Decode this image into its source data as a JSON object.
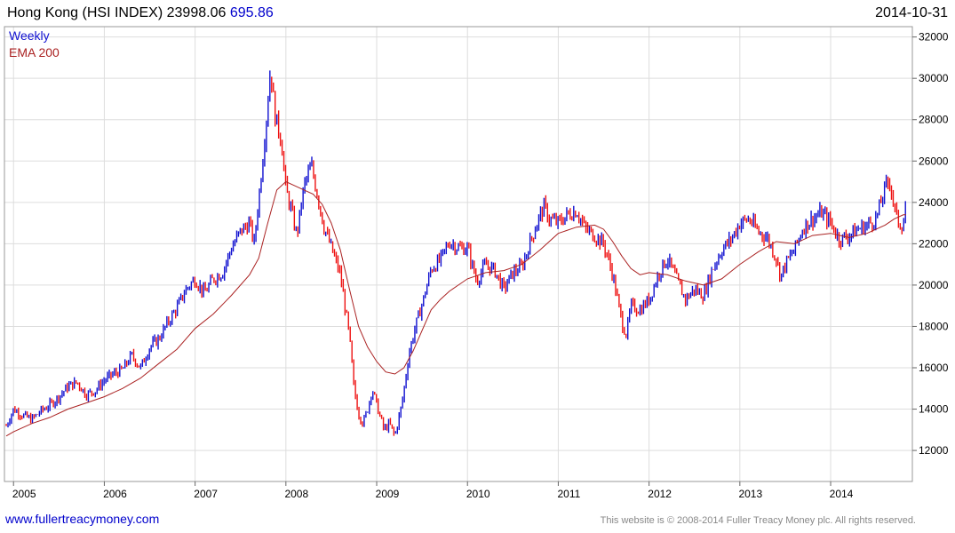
{
  "header": {
    "title": "Hong Kong (HSI INDEX) 23998.06",
    "change": "695.86",
    "date": "2014-10-31"
  },
  "footer": {
    "url": "www.fullertreacymoney.com",
    "copyright": "This website is © 2008-2014 Fuller Treacy Money plc. All rights reserved."
  },
  "colors": {
    "up": "#1010d0",
    "down": "#ee1111",
    "ema": "#aa2222",
    "grid": "#dddddd",
    "title": "#000000",
    "change": "#0000cc"
  },
  "chart_data": {
    "type": "line",
    "title": "Hong Kong (HSI INDEX) 23998.06",
    "xlabel": "",
    "ylabel": "",
    "xlim": [
      2004.9,
      2014.9
    ],
    "ylim": [
      10500,
      32500
    ],
    "yticks": [
      12000,
      14000,
      16000,
      18000,
      20000,
      22000,
      24000,
      26000,
      28000,
      30000,
      32000
    ],
    "xticks": [
      "2005",
      "2006",
      "2007",
      "2008",
      "2009",
      "2010",
      "2011",
      "2012",
      "2013",
      "2014"
    ],
    "y_axis_position": "right",
    "grid": true,
    "legend": "top-left",
    "series": [
      {
        "name": "Weekly",
        "style": "ohlc-bars",
        "x": [
          2004.92,
          2005.0,
          2005.1,
          2005.2,
          2005.3,
          2005.4,
          2005.5,
          2005.6,
          2005.7,
          2005.8,
          2005.9,
          2006.0,
          2006.1,
          2006.2,
          2006.3,
          2006.4,
          2006.5,
          2006.6,
          2006.7,
          2006.8,
          2006.9,
          2007.0,
          2007.1,
          2007.2,
          2007.3,
          2007.4,
          2007.5,
          2007.6,
          2007.65,
          2007.72,
          2007.78,
          2007.83,
          2007.88,
          2007.95,
          2008.0,
          2008.05,
          2008.12,
          2008.2,
          2008.28,
          2008.35,
          2008.42,
          2008.5,
          2008.6,
          2008.7,
          2008.75,
          2008.8,
          2008.85,
          2008.9,
          2008.95,
          2009.0,
          2009.08,
          2009.14,
          2009.2,
          2009.28,
          2009.36,
          2009.44,
          2009.52,
          2009.6,
          2009.7,
          2009.8,
          2009.9,
          2010.0,
          2010.1,
          2010.2,
          2010.3,
          2010.4,
          2010.5,
          2010.6,
          2010.7,
          2010.8,
          2010.85,
          2010.9,
          2011.0,
          2011.1,
          2011.2,
          2011.3,
          2011.4,
          2011.5,
          2011.6,
          2011.7,
          2011.75,
          2011.8,
          2011.9,
          2012.0,
          2012.1,
          2012.2,
          2012.3,
          2012.4,
          2012.5,
          2012.6,
          2012.7,
          2012.8,
          2012.9,
          2013.0,
          2013.1,
          2013.2,
          2013.3,
          2013.4,
          2013.45,
          2013.5,
          2013.6,
          2013.7,
          2013.8,
          2013.9,
          2014.0,
          2014.1,
          2014.2,
          2014.3,
          2014.4,
          2014.5,
          2014.6,
          2014.65,
          2014.7,
          2014.75,
          2014.8,
          2014.83
        ],
        "values": [
          13200,
          14000,
          13700,
          13500,
          13900,
          14200,
          14600,
          15100,
          15300,
          14700,
          14900,
          15400,
          15700,
          15900,
          16600,
          16000,
          17000,
          17400,
          18200,
          18900,
          19800,
          20300,
          19600,
          20300,
          20600,
          21800,
          22600,
          23000,
          22000,
          25000,
          27800,
          30500,
          28200,
          27000,
          24600,
          23800,
          22400,
          24800,
          25800,
          24300,
          22800,
          21800,
          20500,
          17500,
          15000,
          13800,
          13300,
          14000,
          15000,
          14200,
          13000,
          13300,
          12700,
          14300,
          16800,
          18200,
          19400,
          20800,
          21200,
          22100,
          21800,
          21800,
          20200,
          21000,
          20700,
          19800,
          20600,
          20900,
          22200,
          23400,
          23800,
          23200,
          23000,
          23400,
          23600,
          22700,
          22400,
          22000,
          20500,
          18200,
          17600,
          19000,
          18800,
          19300,
          20500,
          21300,
          20300,
          19300,
          19800,
          19500,
          20800,
          21700,
          22200,
          23000,
          23200,
          22600,
          22300,
          21300,
          20400,
          21000,
          21700,
          22800,
          23200,
          23500,
          23000,
          22200,
          22400,
          22700,
          22900,
          23200,
          24700,
          25100,
          23700,
          23000,
          22900,
          23998
        ]
      },
      {
        "name": "EMA 200",
        "style": "line",
        "x": [
          2004.92,
          2005.0,
          2005.2,
          2005.4,
          2005.6,
          2005.8,
          2006.0,
          2006.2,
          2006.4,
          2006.6,
          2006.8,
          2007.0,
          2007.2,
          2007.4,
          2007.6,
          2007.7,
          2007.8,
          2007.9,
          2008.0,
          2008.1,
          2008.2,
          2008.3,
          2008.4,
          2008.5,
          2008.6,
          2008.7,
          2008.8,
          2008.9,
          2009.0,
          2009.1,
          2009.2,
          2009.3,
          2009.4,
          2009.5,
          2009.6,
          2009.7,
          2009.8,
          2009.9,
          2010.0,
          2010.2,
          2010.4,
          2010.6,
          2010.8,
          2011.0,
          2011.2,
          2011.4,
          2011.5,
          2011.6,
          2011.7,
          2011.8,
          2011.9,
          2012.0,
          2012.2,
          2012.4,
          2012.6,
          2012.8,
          2013.0,
          2013.2,
          2013.4,
          2013.6,
          2013.8,
          2014.0,
          2014.2,
          2014.4,
          2014.6,
          2014.7,
          2014.8,
          2014.83
        ],
        "values": [
          12700,
          12900,
          13300,
          13600,
          14000,
          14300,
          14600,
          15000,
          15500,
          16200,
          16900,
          17900,
          18600,
          19500,
          20500,
          21300,
          23000,
          24600,
          25000,
          24800,
          24600,
          24400,
          23900,
          23000,
          21700,
          19800,
          18000,
          17000,
          16300,
          15800,
          15700,
          16000,
          16800,
          17800,
          18800,
          19300,
          19700,
          20000,
          20300,
          20600,
          20700,
          21000,
          21700,
          22500,
          22800,
          22900,
          22700,
          22100,
          21400,
          20800,
          20500,
          20600,
          20500,
          20200,
          20000,
          20300,
          21000,
          21600,
          22100,
          22000,
          22400,
          22500,
          22300,
          22500,
          22900,
          23200,
          23400,
          23400
        ]
      }
    ]
  }
}
